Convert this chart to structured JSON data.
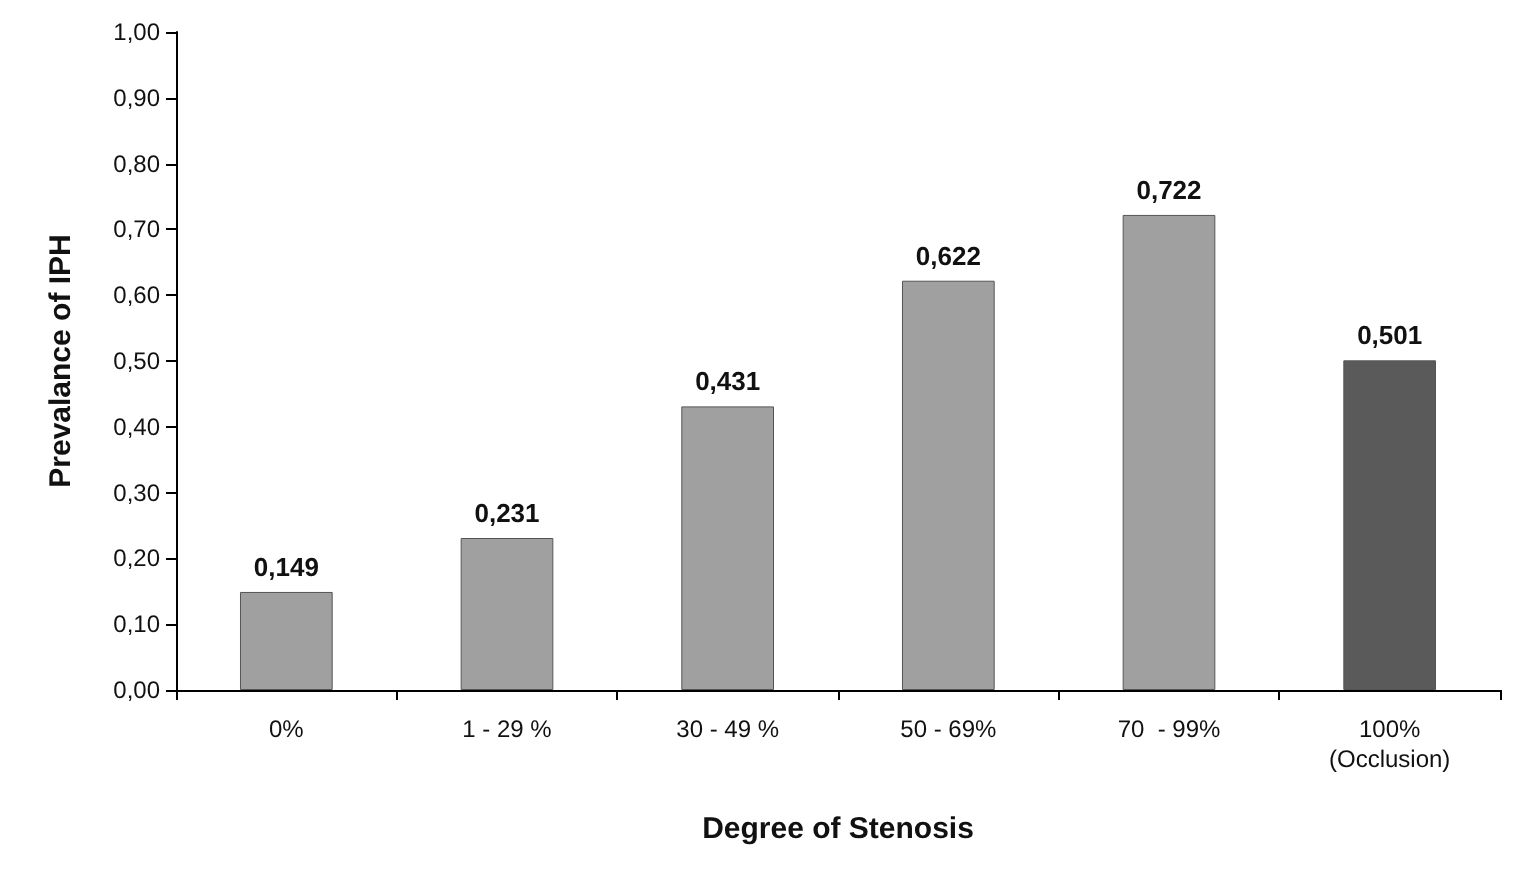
{
  "chart_data": {
    "type": "bar",
    "xlabel": "Degree of Stenosis",
    "ylabel": "Prevalance of IPH",
    "categories": [
      "0%",
      "1 - 29 %",
      "30 - 49 %",
      "50 - 69%",
      "70  - 99%",
      "100%\n(Occlusion)"
    ],
    "values": [
      0.149,
      0.231,
      0.431,
      0.622,
      0.722,
      0.501
    ],
    "value_labels": [
      "0,149",
      "0,231",
      "0,431",
      "0,622",
      "0,722",
      "0,501"
    ],
    "colors": [
      "#a0a0a0",
      "#a0a0a0",
      "#a0a0a0",
      "#a0a0a0",
      "#a0a0a0",
      "#5a5a5a"
    ],
    "ylim": [
      0,
      1
    ],
    "yticks": [
      {
        "value": 0,
        "label": "0,00"
      },
      {
        "value": 0.1,
        "label": "0,10"
      },
      {
        "value": 0.2,
        "label": "0,20"
      },
      {
        "value": 0.3,
        "label": "0,30"
      },
      {
        "value": 0.4,
        "label": "0,40"
      },
      {
        "value": 0.5,
        "label": "0,50"
      },
      {
        "value": 0.6,
        "label": "0,60"
      },
      {
        "value": 0.7,
        "label": "0,70"
      },
      {
        "value": 0.8,
        "label": "0,80"
      },
      {
        "value": 0.9,
        "label": "0,90"
      },
      {
        "value": 1,
        "label": "1,00"
      }
    ],
    "grid": false
  }
}
